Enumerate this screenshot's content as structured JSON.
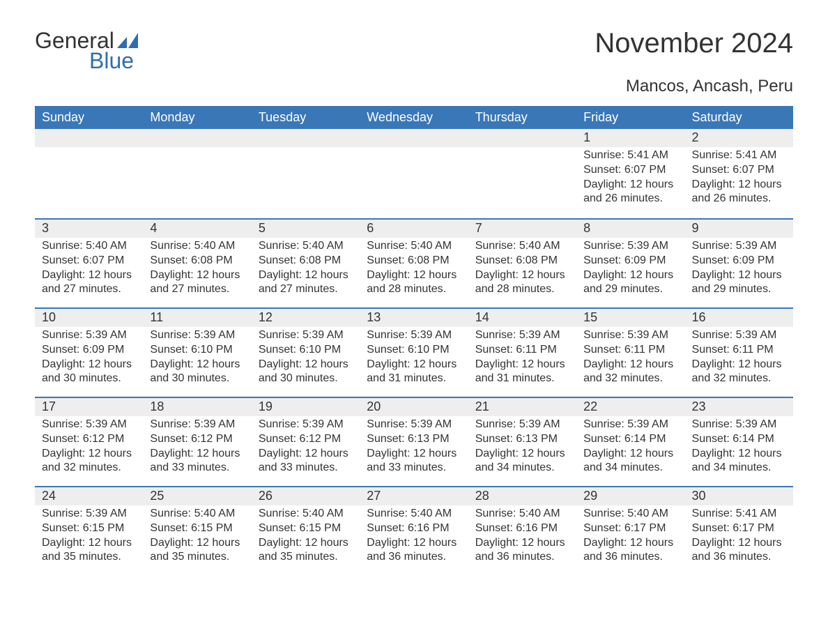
{
  "branding": {
    "logo_word1": "General",
    "logo_word2": "Blue",
    "logo_color_text": "#333333",
    "logo_color_accent": "#2f6db0"
  },
  "title": "November 2024",
  "subtitle": "Mancos, Ancash, Peru",
  "colors": {
    "header_bg": "#3a77b6",
    "header_text": "#ffffff",
    "daynum_bg": "#eeeeee",
    "week_border": "#3a77b6",
    "body_text": "#333333",
    "page_bg": "#ffffff"
  },
  "typography": {
    "title_fontsize": 40,
    "subtitle_fontsize": 24,
    "dow_fontsize": 18,
    "daynum_fontsize": 18,
    "body_fontsize": 16,
    "font_family": "Arial, Helvetica, sans-serif"
  },
  "days_of_week": [
    "Sunday",
    "Monday",
    "Tuesday",
    "Wednesday",
    "Thursday",
    "Friday",
    "Saturday"
  ],
  "weeks": [
    [
      null,
      null,
      null,
      null,
      null,
      {
        "day": "1",
        "sunrise": "Sunrise: 5:41 AM",
        "sunset": "Sunset: 6:07 PM",
        "daylight_a": "Daylight: 12 hours",
        "daylight_b": "and 26 minutes."
      },
      {
        "day": "2",
        "sunrise": "Sunrise: 5:41 AM",
        "sunset": "Sunset: 6:07 PM",
        "daylight_a": "Daylight: 12 hours",
        "daylight_b": "and 26 minutes."
      }
    ],
    [
      {
        "day": "3",
        "sunrise": "Sunrise: 5:40 AM",
        "sunset": "Sunset: 6:07 PM",
        "daylight_a": "Daylight: 12 hours",
        "daylight_b": "and 27 minutes."
      },
      {
        "day": "4",
        "sunrise": "Sunrise: 5:40 AM",
        "sunset": "Sunset: 6:08 PM",
        "daylight_a": "Daylight: 12 hours",
        "daylight_b": "and 27 minutes."
      },
      {
        "day": "5",
        "sunrise": "Sunrise: 5:40 AM",
        "sunset": "Sunset: 6:08 PM",
        "daylight_a": "Daylight: 12 hours",
        "daylight_b": "and 27 minutes."
      },
      {
        "day": "6",
        "sunrise": "Sunrise: 5:40 AM",
        "sunset": "Sunset: 6:08 PM",
        "daylight_a": "Daylight: 12 hours",
        "daylight_b": "and 28 minutes."
      },
      {
        "day": "7",
        "sunrise": "Sunrise: 5:40 AM",
        "sunset": "Sunset: 6:08 PM",
        "daylight_a": "Daylight: 12 hours",
        "daylight_b": "and 28 minutes."
      },
      {
        "day": "8",
        "sunrise": "Sunrise: 5:39 AM",
        "sunset": "Sunset: 6:09 PM",
        "daylight_a": "Daylight: 12 hours",
        "daylight_b": "and 29 minutes."
      },
      {
        "day": "9",
        "sunrise": "Sunrise: 5:39 AM",
        "sunset": "Sunset: 6:09 PM",
        "daylight_a": "Daylight: 12 hours",
        "daylight_b": "and 29 minutes."
      }
    ],
    [
      {
        "day": "10",
        "sunrise": "Sunrise: 5:39 AM",
        "sunset": "Sunset: 6:09 PM",
        "daylight_a": "Daylight: 12 hours",
        "daylight_b": "and 30 minutes."
      },
      {
        "day": "11",
        "sunrise": "Sunrise: 5:39 AM",
        "sunset": "Sunset: 6:10 PM",
        "daylight_a": "Daylight: 12 hours",
        "daylight_b": "and 30 minutes."
      },
      {
        "day": "12",
        "sunrise": "Sunrise: 5:39 AM",
        "sunset": "Sunset: 6:10 PM",
        "daylight_a": "Daylight: 12 hours",
        "daylight_b": "and 30 minutes."
      },
      {
        "day": "13",
        "sunrise": "Sunrise: 5:39 AM",
        "sunset": "Sunset: 6:10 PM",
        "daylight_a": "Daylight: 12 hours",
        "daylight_b": "and 31 minutes."
      },
      {
        "day": "14",
        "sunrise": "Sunrise: 5:39 AM",
        "sunset": "Sunset: 6:11 PM",
        "daylight_a": "Daylight: 12 hours",
        "daylight_b": "and 31 minutes."
      },
      {
        "day": "15",
        "sunrise": "Sunrise: 5:39 AM",
        "sunset": "Sunset: 6:11 PM",
        "daylight_a": "Daylight: 12 hours",
        "daylight_b": "and 32 minutes."
      },
      {
        "day": "16",
        "sunrise": "Sunrise: 5:39 AM",
        "sunset": "Sunset: 6:11 PM",
        "daylight_a": "Daylight: 12 hours",
        "daylight_b": "and 32 minutes."
      }
    ],
    [
      {
        "day": "17",
        "sunrise": "Sunrise: 5:39 AM",
        "sunset": "Sunset: 6:12 PM",
        "daylight_a": "Daylight: 12 hours",
        "daylight_b": "and 32 minutes."
      },
      {
        "day": "18",
        "sunrise": "Sunrise: 5:39 AM",
        "sunset": "Sunset: 6:12 PM",
        "daylight_a": "Daylight: 12 hours",
        "daylight_b": "and 33 minutes."
      },
      {
        "day": "19",
        "sunrise": "Sunrise: 5:39 AM",
        "sunset": "Sunset: 6:12 PM",
        "daylight_a": "Daylight: 12 hours",
        "daylight_b": "and 33 minutes."
      },
      {
        "day": "20",
        "sunrise": "Sunrise: 5:39 AM",
        "sunset": "Sunset: 6:13 PM",
        "daylight_a": "Daylight: 12 hours",
        "daylight_b": "and 33 minutes."
      },
      {
        "day": "21",
        "sunrise": "Sunrise: 5:39 AM",
        "sunset": "Sunset: 6:13 PM",
        "daylight_a": "Daylight: 12 hours",
        "daylight_b": "and 34 minutes."
      },
      {
        "day": "22",
        "sunrise": "Sunrise: 5:39 AM",
        "sunset": "Sunset: 6:14 PM",
        "daylight_a": "Daylight: 12 hours",
        "daylight_b": "and 34 minutes."
      },
      {
        "day": "23",
        "sunrise": "Sunrise: 5:39 AM",
        "sunset": "Sunset: 6:14 PM",
        "daylight_a": "Daylight: 12 hours",
        "daylight_b": "and 34 minutes."
      }
    ],
    [
      {
        "day": "24",
        "sunrise": "Sunrise: 5:39 AM",
        "sunset": "Sunset: 6:15 PM",
        "daylight_a": "Daylight: 12 hours",
        "daylight_b": "and 35 minutes."
      },
      {
        "day": "25",
        "sunrise": "Sunrise: 5:40 AM",
        "sunset": "Sunset: 6:15 PM",
        "daylight_a": "Daylight: 12 hours",
        "daylight_b": "and 35 minutes."
      },
      {
        "day": "26",
        "sunrise": "Sunrise: 5:40 AM",
        "sunset": "Sunset: 6:15 PM",
        "daylight_a": "Daylight: 12 hours",
        "daylight_b": "and 35 minutes."
      },
      {
        "day": "27",
        "sunrise": "Sunrise: 5:40 AM",
        "sunset": "Sunset: 6:16 PM",
        "daylight_a": "Daylight: 12 hours",
        "daylight_b": "and 36 minutes."
      },
      {
        "day": "28",
        "sunrise": "Sunrise: 5:40 AM",
        "sunset": "Sunset: 6:16 PM",
        "daylight_a": "Daylight: 12 hours",
        "daylight_b": "and 36 minutes."
      },
      {
        "day": "29",
        "sunrise": "Sunrise: 5:40 AM",
        "sunset": "Sunset: 6:17 PM",
        "daylight_a": "Daylight: 12 hours",
        "daylight_b": "and 36 minutes."
      },
      {
        "day": "30",
        "sunrise": "Sunrise: 5:41 AM",
        "sunset": "Sunset: 6:17 PM",
        "daylight_a": "Daylight: 12 hours",
        "daylight_b": "and 36 minutes."
      }
    ]
  ]
}
